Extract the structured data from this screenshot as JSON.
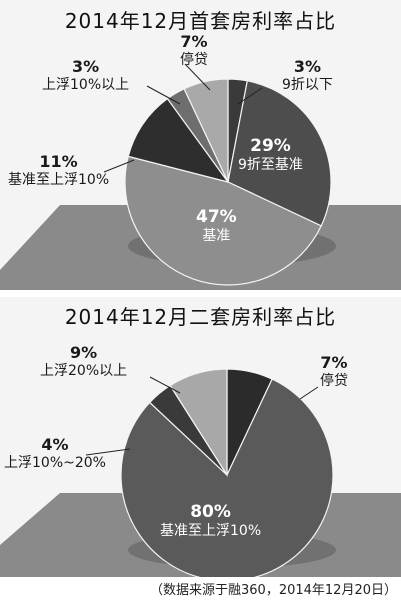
{
  "chart_data": [
    {
      "type": "pie",
      "title": "2014年12月首套房利率占比",
      "slices": [
        {
          "label": "9折以下",
          "pct_text": "3%",
          "value": 3,
          "color": "#3a3a3a"
        },
        {
          "label": "9折至基准",
          "pct_text": "29%",
          "value": 29,
          "color": "#4d4d4d"
        },
        {
          "label": "基准",
          "pct_text": "47%",
          "value": 47,
          "color": "#8e8e8e"
        },
        {
          "label": "基准至上浮10%",
          "pct_text": "11%",
          "value": 11,
          "color": "#2e2e2e"
        },
        {
          "label": "上浮10%以上",
          "pct_text": "3%",
          "value": 3,
          "color": "#6e6e6e"
        },
        {
          "label": "停贷",
          "pct_text": "7%",
          "value": 7,
          "color": "#a9a9a9"
        }
      ]
    },
    {
      "type": "pie",
      "title": "2014年12月二套房利率占比",
      "slices": [
        {
          "label": "停贷",
          "pct_text": "7%",
          "value": 7,
          "color": "#2b2b2b"
        },
        {
          "label": "基准至上浮10%",
          "pct_text": "80%",
          "value": 80,
          "color": "#5a5a5a"
        },
        {
          "label": "上浮10%~20%",
          "pct_text": "4%",
          "value": 4,
          "color": "#3a3a3a"
        },
        {
          "label": "上浮20%以上",
          "pct_text": "9%",
          "value": 9,
          "color": "#a8a8a8"
        }
      ]
    }
  ],
  "source_note": "（数据来源于融360，2014年12月20日）"
}
